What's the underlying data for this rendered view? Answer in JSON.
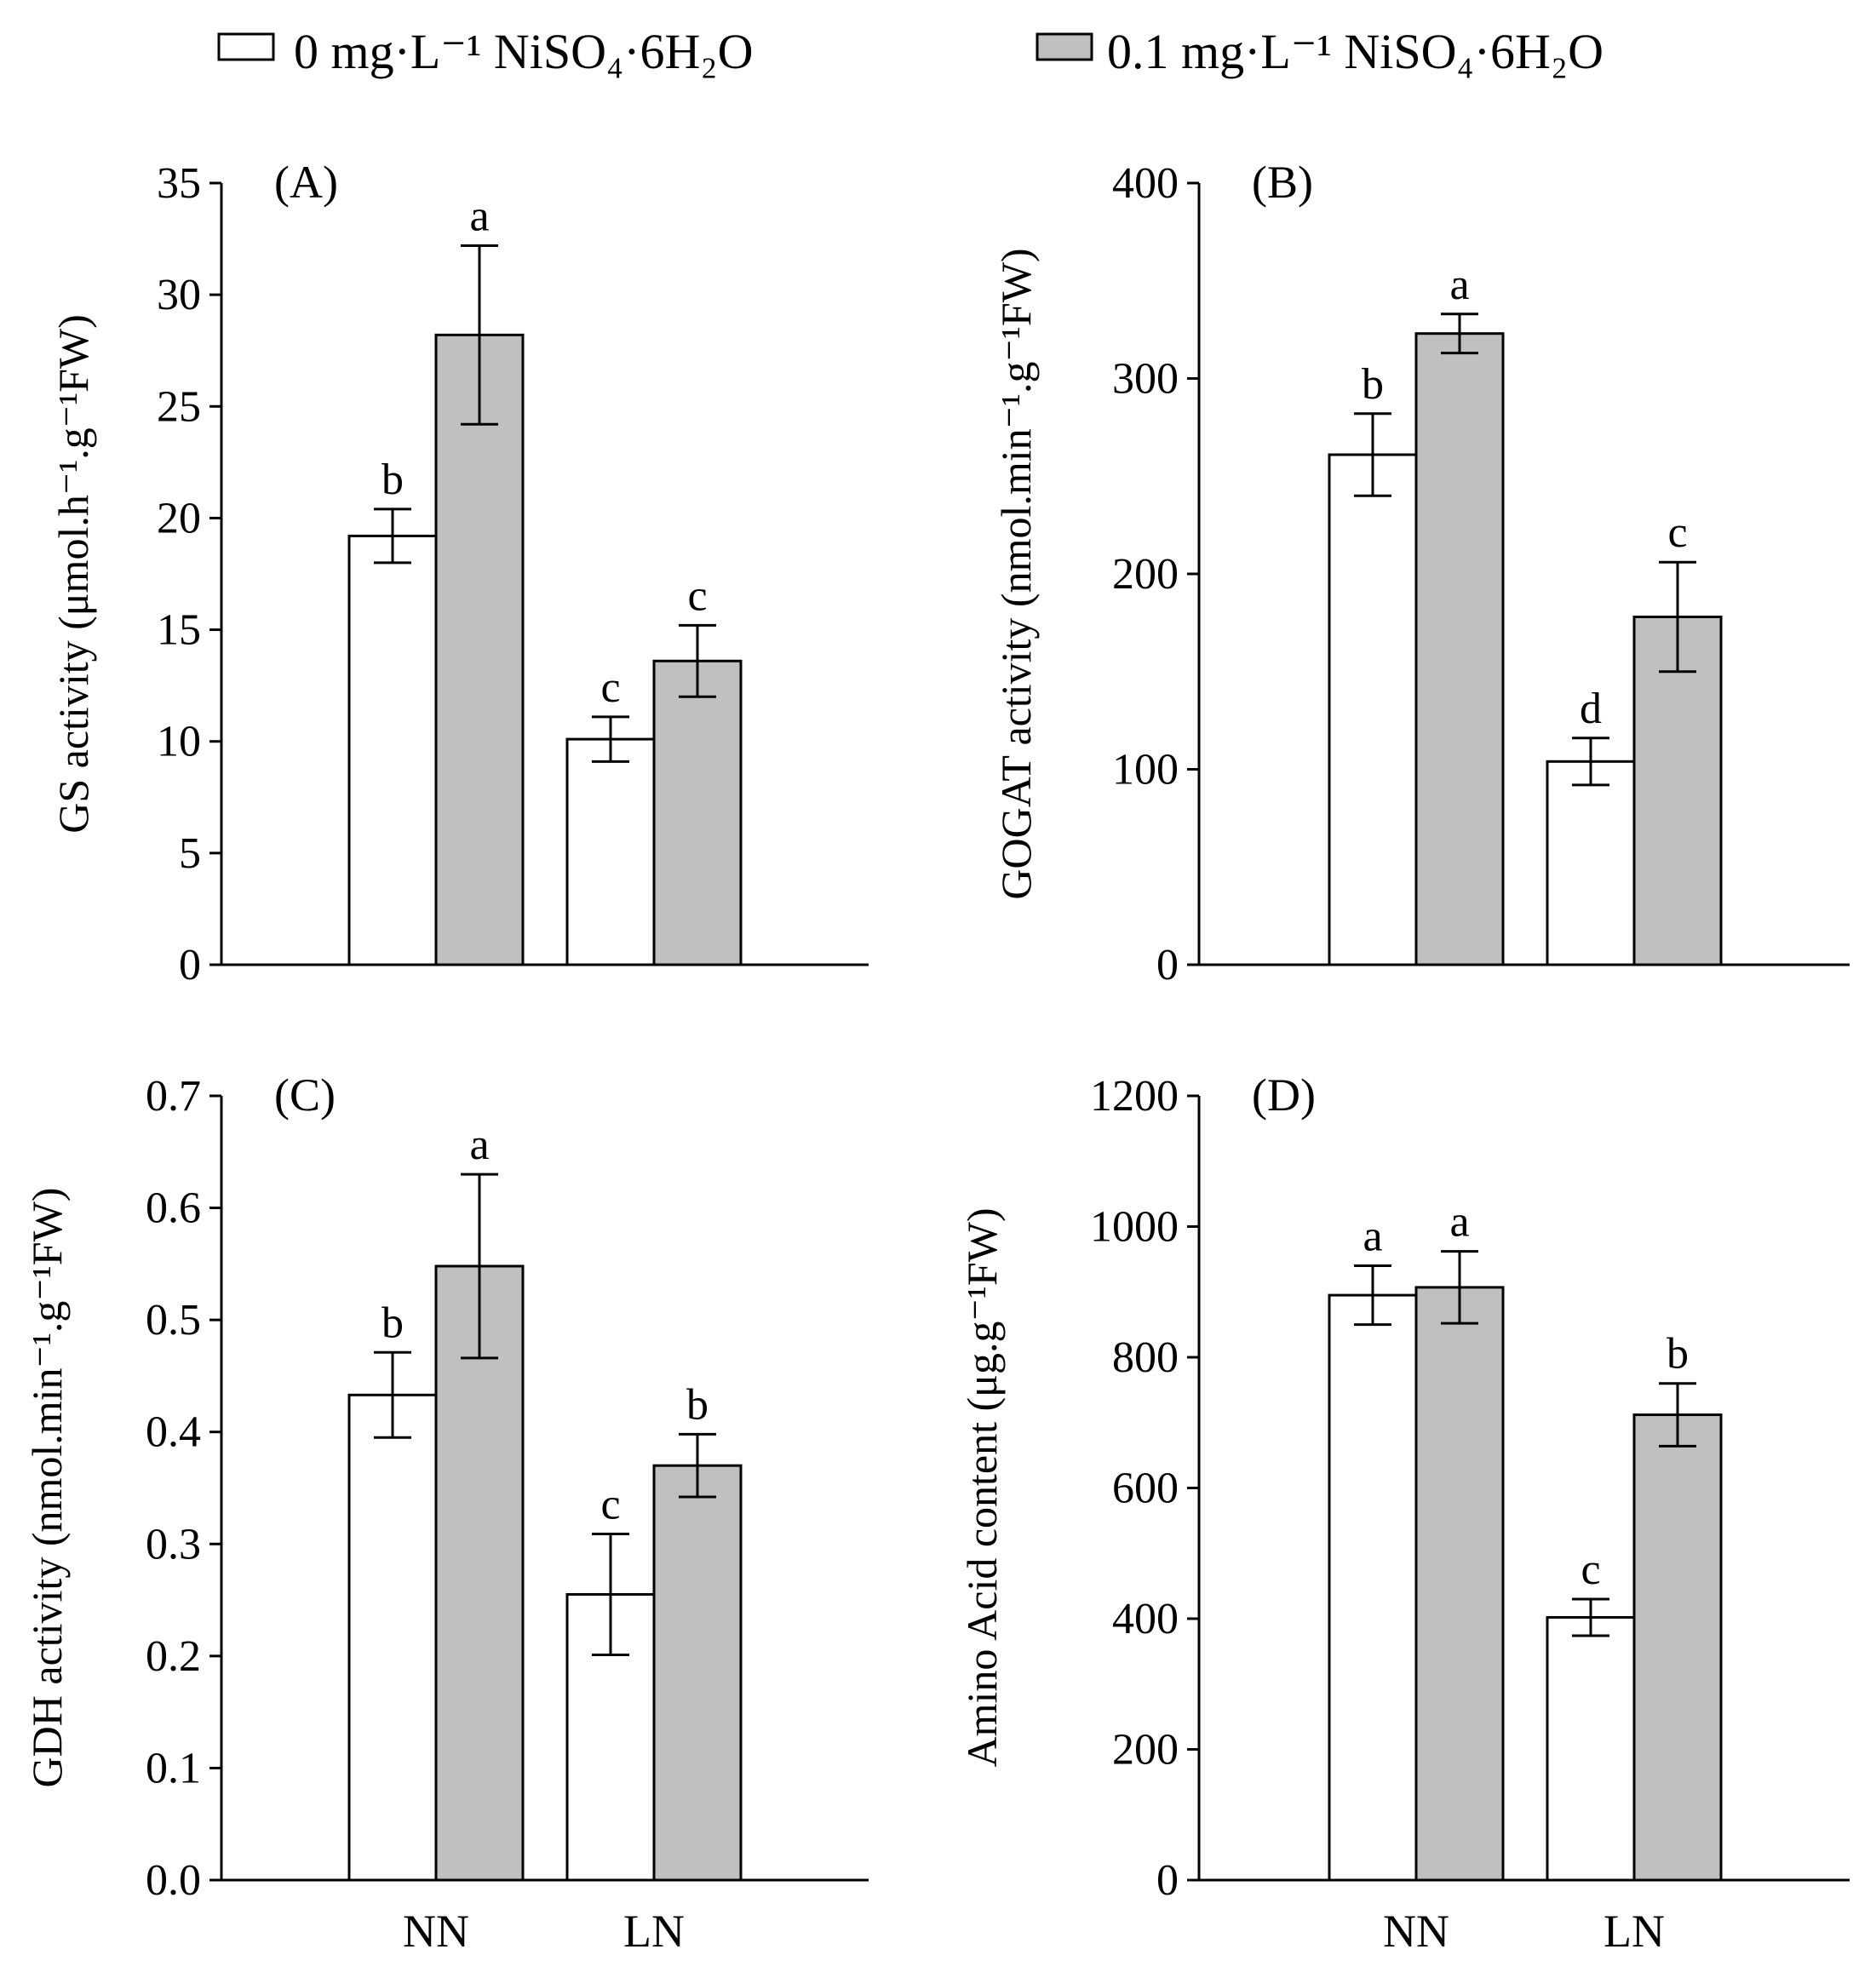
{
  "legend": [
    {
      "label": "0 mg·L⁻¹ NiSO₄·6H₂O",
      "fill": "#ffffff"
    },
    {
      "label": "0.1 mg·L⁻¹ NiSO₄·6H₂O",
      "fill": "#c0c0c0"
    }
  ],
  "colors": {
    "series_0": "#ffffff",
    "series_1": "#c0c0c0",
    "stroke": "#000000"
  },
  "chart_data": [
    {
      "type": "bar",
      "panel_label": "(A)",
      "ylabel": "GS activity (μmol.h⁻¹.g⁻¹FW)",
      "ylim": [
        0,
        35
      ],
      "yticks": [
        "0",
        "5",
        "10",
        "15",
        "20",
        "25",
        "30",
        "35"
      ],
      "categories": [
        "NN",
        "LN"
      ],
      "series": [
        {
          "name": "0 mg·L⁻¹ NiSO₄·6H₂O",
          "values": [
            19.2,
            10.1
          ],
          "errors": [
            1.2,
            1.0
          ],
          "letters": [
            "b",
            "c"
          ]
        },
        {
          "name": "0.1 mg·L⁻¹ NiSO₄·6H₂O",
          "values": [
            28.2,
            13.6
          ],
          "errors": [
            4.0,
            1.6
          ],
          "letters": [
            "a",
            "c"
          ]
        }
      ]
    },
    {
      "type": "bar",
      "panel_label": "(B)",
      "ylabel": "GOGAT activity (nmol.min⁻¹.g⁻¹FW)",
      "ylim": [
        0,
        400
      ],
      "yticks": [
        "0",
        "100",
        "200",
        "300",
        "400"
      ],
      "categories": [
        "NN",
        "LN"
      ],
      "series": [
        {
          "name": "0 mg·L⁻¹ NiSO₄·6H₂O",
          "values": [
            261,
            104
          ],
          "errors": [
            21,
            12
          ],
          "letters": [
            "b",
            "d"
          ]
        },
        {
          "name": "0.1 mg·L⁻¹ NiSO₄·6H₂O",
          "values": [
            323,
            178
          ],
          "errors": [
            10,
            28
          ],
          "letters": [
            "a",
            "c"
          ]
        }
      ]
    },
    {
      "type": "bar",
      "panel_label": "(C)",
      "ylabel": "GDH activity (nmol.min⁻¹.g⁻¹FW)",
      "ylim": [
        0,
        0.7
      ],
      "yticks": [
        "0.0",
        "0.1",
        "0.2",
        "0.3",
        "0.4",
        "0.5",
        "0.6",
        "0.7"
      ],
      "categories": [
        "NN",
        "LN"
      ],
      "series": [
        {
          "name": "0 mg·L⁻¹ NiSO₄·6H₂O",
          "values": [
            0.433,
            0.255
          ],
          "errors": [
            0.038,
            0.054
          ],
          "letters": [
            "b",
            "c"
          ]
        },
        {
          "name": "0.1 mg·L⁻¹ NiSO₄·6H₂O",
          "values": [
            0.548,
            0.37
          ],
          "errors": [
            0.082,
            0.028
          ],
          "letters": [
            "a",
            "b"
          ]
        }
      ]
    },
    {
      "type": "bar",
      "panel_label": "(D)",
      "ylabel": "Amino Acid content (μg.g⁻¹FW)",
      "ylim": [
        0,
        1200
      ],
      "yticks": [
        "0",
        "200",
        "400",
        "600",
        "800",
        "1000",
        "1200"
      ],
      "categories": [
        "NN",
        "LN"
      ],
      "series": [
        {
          "name": "0 mg·L⁻¹ NiSO₄·6H₂O",
          "values": [
            895,
            402
          ],
          "errors": [
            45,
            28
          ],
          "letters": [
            "a",
            "c"
          ]
        },
        {
          "name": "0.1 mg·L⁻¹ NiSO₄·6H₂O",
          "values": [
            907,
            712
          ],
          "errors": [
            55,
            48
          ],
          "letters": [
            "a",
            "b"
          ]
        }
      ]
    }
  ]
}
